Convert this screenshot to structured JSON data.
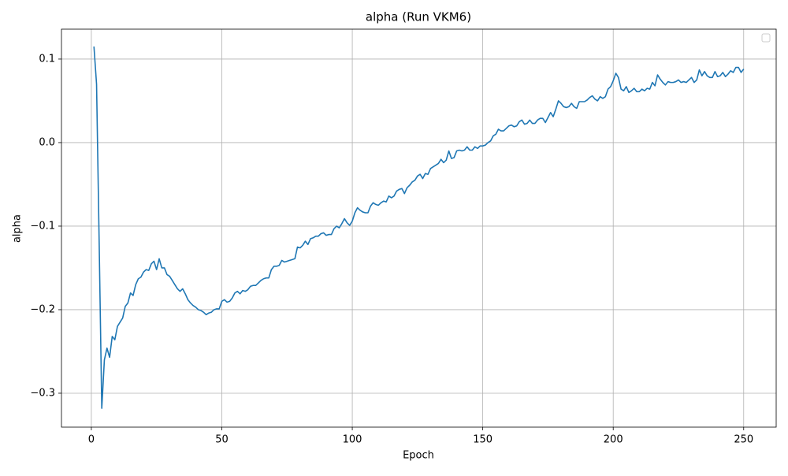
{
  "chart_data": {
    "type": "line",
    "title": "alpha (Run VKM6)",
    "x_label": "Epoch",
    "y_label": "alpha",
    "x": [
      1,
      2,
      3,
      4,
      5,
      6,
      7,
      8,
      9,
      10,
      11,
      12,
      13,
      14,
      15,
      16,
      17,
      18,
      19,
      20,
      21,
      22,
      23,
      24,
      25,
      26,
      27,
      28,
      29,
      30,
      31,
      32,
      33,
      34,
      35,
      36,
      37,
      38,
      39,
      40,
      41,
      42,
      43,
      44,
      45,
      46,
      47,
      48,
      49,
      50,
      51,
      52,
      53,
      54,
      55,
      56,
      57,
      58,
      59,
      60,
      61,
      62,
      63,
      64,
      65,
      66,
      67,
      68,
      69,
      70,
      71,
      72,
      73,
      74,
      75,
      76,
      77,
      78,
      79,
      80,
      81,
      82,
      83,
      84,
      85,
      86,
      87,
      88,
      89,
      90,
      91,
      92,
      93,
      94,
      95,
      96,
      97,
      98,
      99,
      100,
      101,
      102,
      103,
      104,
      105,
      106,
      107,
      108,
      109,
      110,
      111,
      112,
      113,
      114,
      115,
      116,
      117,
      118,
      119,
      120,
      121,
      122,
      123,
      124,
      125,
      126,
      127,
      128,
      129,
      130,
      131,
      132,
      133,
      134,
      135,
      136,
      137,
      138,
      139,
      140,
      141,
      142,
      143,
      144,
      145,
      146,
      147,
      148,
      149,
      150,
      151,
      152,
      153,
      154,
      155,
      156,
      157,
      158,
      159,
      160,
      161,
      162,
      163,
      164,
      165,
      166,
      167,
      168,
      169,
      170,
      171,
      172,
      173,
      174,
      175,
      176,
      177,
      178,
      179,
      180,
      181,
      182,
      183,
      184,
      185,
      186,
      187,
      188,
      189,
      190,
      191,
      192,
      193,
      194,
      195,
      196,
      197,
      198,
      199,
      200,
      201,
      202,
      203,
      204,
      205,
      206,
      207,
      208,
      209,
      210,
      211,
      212,
      213,
      214,
      215,
      216,
      217,
      218,
      219,
      220,
      221,
      222,
      223,
      224,
      225,
      226,
      227,
      228,
      229,
      230,
      231,
      232,
      233,
      234,
      235,
      236,
      237,
      238,
      239,
      240,
      241,
      242,
      243,
      244,
      245,
      246,
      247,
      248,
      249,
      250
    ],
    "series": [
      {
        "color": "#1f77b4",
        "values": [
          0.115,
          0.07,
          -0.12,
          -0.318,
          -0.26,
          -0.246,
          -0.257,
          -0.232,
          -0.236,
          -0.22,
          -0.215,
          -0.21,
          -0.196,
          -0.192,
          -0.18,
          -0.183,
          -0.17,
          -0.163,
          -0.161,
          -0.155,
          -0.152,
          -0.153,
          -0.145,
          -0.142,
          -0.152,
          -0.139,
          -0.15,
          -0.15,
          -0.158,
          -0.16,
          -0.165,
          -0.17,
          -0.175,
          -0.178,
          -0.175,
          -0.181,
          -0.188,
          -0.192,
          -0.195,
          -0.197,
          -0.2,
          -0.201,
          -0.203,
          -0.206,
          -0.204,
          -0.203,
          -0.2,
          -0.199,
          -0.199,
          -0.19,
          -0.188,
          -0.191,
          -0.19,
          -0.186,
          -0.18,
          -0.178,
          -0.181,
          -0.177,
          -0.178,
          -0.176,
          -0.172,
          -0.171,
          -0.171,
          -0.168,
          -0.165,
          -0.163,
          -0.162,
          -0.162,
          -0.152,
          -0.148,
          -0.148,
          -0.147,
          -0.141,
          -0.143,
          -0.142,
          -0.141,
          -0.14,
          -0.139,
          -0.125,
          -0.126,
          -0.123,
          -0.118,
          -0.122,
          -0.115,
          -0.114,
          -0.112,
          -0.112,
          -0.109,
          -0.108,
          -0.111,
          -0.11,
          -0.11,
          -0.103,
          -0.1,
          -0.102,
          -0.097,
          -0.091,
          -0.096,
          -0.099,
          -0.094,
          -0.084,
          -0.078,
          -0.081,
          -0.083,
          -0.084,
          -0.084,
          -0.076,
          -0.072,
          -0.074,
          -0.075,
          -0.072,
          -0.07,
          -0.071,
          -0.064,
          -0.066,
          -0.064,
          -0.058,
          -0.056,
          -0.055,
          -0.061,
          -0.054,
          -0.051,
          -0.047,
          -0.045,
          -0.04,
          -0.038,
          -0.043,
          -0.037,
          -0.038,
          -0.031,
          -0.029,
          -0.027,
          -0.025,
          -0.02,
          -0.024,
          -0.021,
          -0.01,
          -0.019,
          -0.018,
          -0.01,
          -0.009,
          -0.01,
          -0.009,
          -0.005,
          -0.009,
          -0.009,
          -0.005,
          -0.007,
          -0.004,
          -0.004,
          -0.003,
          0.0,
          0.002,
          0.008,
          0.01,
          0.016,
          0.014,
          0.014,
          0.017,
          0.02,
          0.021,
          0.019,
          0.02,
          0.025,
          0.027,
          0.022,
          0.023,
          0.027,
          0.023,
          0.023,
          0.027,
          0.029,
          0.029,
          0.024,
          0.03,
          0.036,
          0.031,
          0.04,
          0.05,
          0.047,
          0.043,
          0.042,
          0.043,
          0.047,
          0.043,
          0.041,
          0.049,
          0.049,
          0.049,
          0.051,
          0.054,
          0.056,
          0.052,
          0.05,
          0.055,
          0.053,
          0.055,
          0.064,
          0.067,
          0.074,
          0.083,
          0.078,
          0.064,
          0.062,
          0.067,
          0.06,
          0.062,
          0.065,
          0.061,
          0.061,
          0.064,
          0.062,
          0.065,
          0.064,
          0.072,
          0.068,
          0.081,
          0.076,
          0.072,
          0.069,
          0.073,
          0.072,
          0.072,
          0.073,
          0.075,
          0.072,
          0.073,
          0.072,
          0.075,
          0.078,
          0.072,
          0.075,
          0.087,
          0.08,
          0.085,
          0.08,
          0.078,
          0.078,
          0.085,
          0.079,
          0.08,
          0.084,
          0.079,
          0.082,
          0.086,
          0.084,
          0.09,
          0.09,
          0.084,
          0.088
        ]
      }
    ],
    "xlim": [
      -11.45,
      262.45
    ],
    "xticks": [
      0,
      50,
      100,
      150,
      200,
      250
    ],
    "ylim": [
      -0.3406,
      0.1358
    ],
    "yticks": [
      {
        "value": -0.3,
        "label": "−0.3"
      },
      {
        "value": -0.2,
        "label": "−0.2"
      },
      {
        "value": -0.1,
        "label": "−0.1"
      },
      {
        "value": 0,
        "label": "0.0"
      },
      0.1
    ],
    "grid": true,
    "legend": "upper right"
  }
}
